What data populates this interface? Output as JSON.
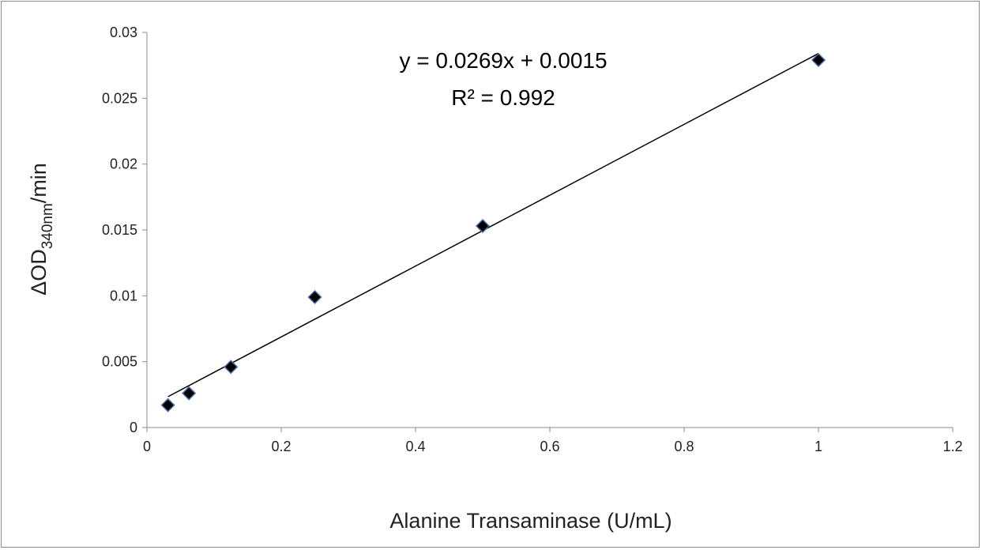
{
  "chart_data": {
    "type": "scatter",
    "title": "",
    "xlabel": "Alanine Transaminase (U/mL)",
    "ylabel": {
      "main": "ΔOD",
      "sub": "340nm",
      "suffix": "/min"
    },
    "xlim": [
      0,
      1.2
    ],
    "ylim": [
      0,
      0.03
    ],
    "x_ticks": [
      0,
      0.2,
      0.4,
      0.6,
      0.8,
      1.0,
      1.2
    ],
    "x_tick_labels": [
      "0",
      "0.2",
      "0.4",
      "0.6",
      "0.8",
      "1",
      "1.2"
    ],
    "y_ticks": [
      0,
      0.005,
      0.01,
      0.015,
      0.02,
      0.025,
      0.03
    ],
    "y_tick_labels": [
      "0",
      "0.005",
      "0.01",
      "0.015",
      "0.02",
      "0.025",
      "0.03"
    ],
    "grid": false,
    "legend": "none",
    "series": [
      {
        "marker": "diamond",
        "color": "#000000",
        "edge_color": "#4a6fa5",
        "points": [
          {
            "x": 0.03125,
            "y": 0.0017
          },
          {
            "x": 0.0625,
            "y": 0.0026
          },
          {
            "x": 0.125,
            "y": 0.0046
          },
          {
            "x": 0.25,
            "y": 0.0099
          },
          {
            "x": 0.5,
            "y": 0.0153
          },
          {
            "x": 1.0,
            "y": 0.0279
          }
        ]
      }
    ],
    "trendline": {
      "type": "linear",
      "slope": 0.0269,
      "intercept": 0.0015,
      "x_range": [
        0.03125,
        1.0
      ],
      "color": "#000000",
      "equation_label": "y = 0.0269x + 0.0015",
      "r2_label": "R² = 0.992"
    }
  }
}
